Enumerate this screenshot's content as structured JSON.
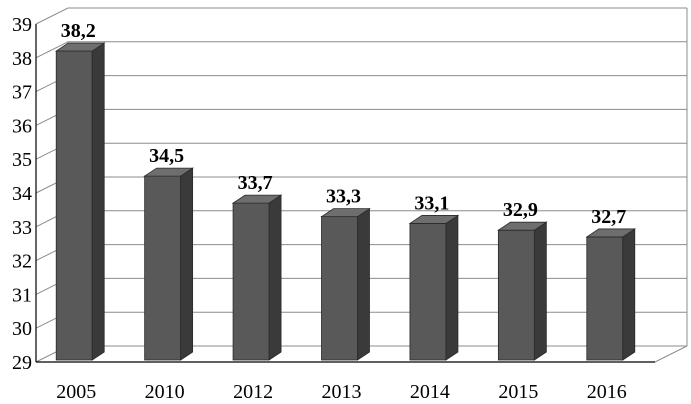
{
  "chart_data": {
    "type": "bar",
    "categories": [
      "2005",
      "2010",
      "2012",
      "2013",
      "2014",
      "2015",
      "2016"
    ],
    "values": [
      38.2,
      34.5,
      33.7,
      33.3,
      33.1,
      32.9,
      32.7
    ],
    "value_labels": [
      "38,2",
      "34,5",
      "33,7",
      "33,3",
      "33,1",
      "32,9",
      "32,7"
    ],
    "y_ticks": [
      "29",
      "30",
      "31",
      "32",
      "33",
      "34",
      "35",
      "36",
      "37",
      "38",
      "39"
    ],
    "ylim": [
      29,
      39
    ],
    "grid": true,
    "three_d": true,
    "legend": "none",
    "colors": {
      "bar_front": "#595959",
      "bar_side": "#3a3a3a",
      "bar_top": "#6e6e6e",
      "grid": "#8c8c8c",
      "axis": "#000000"
    }
  }
}
